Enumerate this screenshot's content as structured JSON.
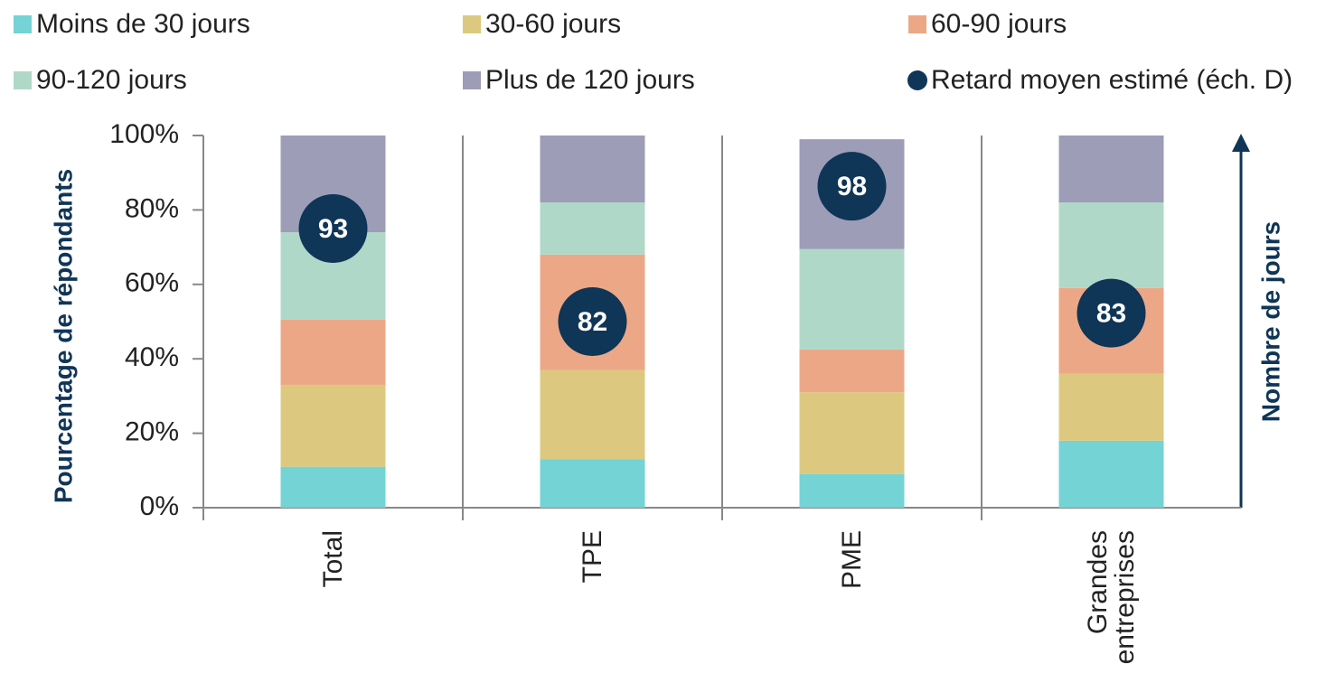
{
  "chart_data": {
    "type": "bar",
    "stacked": true,
    "categories": [
      "Total",
      "TPE",
      "PME",
      "Grandes entreprises"
    ],
    "series": [
      {
        "name": "Moins de 30 jours",
        "color": "#74d3d5",
        "values": [
          11,
          13,
          9,
          18
        ]
      },
      {
        "name": "30-60 jours",
        "color": "#dcc97f",
        "values": [
          22,
          24,
          22,
          18
        ]
      },
      {
        "name": "60-90 jours",
        "color": "#eca886",
        "values": [
          17.5,
          31,
          11.5,
          23
        ]
      },
      {
        "name": "90-120 jours",
        "color": "#b0d8c8",
        "values": [
          23.5,
          14,
          27,
          23
        ]
      },
      {
        "name": "Plus de 120 jours",
        "color": "#9d9db8",
        "values": [
          26,
          18,
          29.5,
          18
        ]
      },
      {
        "name": "Retard moyen estimé (éch. D)",
        "color": "#0f3557",
        "type": "scatter",
        "axis": "y2",
        "values": [
          93,
          82,
          98,
          83
        ]
      }
    ],
    "y_axis_label": "Pourcentage de répondants",
    "y2_axis_label": "Nombre de jours",
    "ylim": [
      0,
      100
    ],
    "yticks": [
      {
        "value": 0,
        "label": "0%"
      },
      {
        "value": 20,
        "label": "20%"
      },
      {
        "value": 40,
        "label": "40%"
      },
      {
        "value": 60,
        "label": "60%"
      },
      {
        "value": 80,
        "label": "80%"
      },
      {
        "value": 100,
        "label": "100%"
      }
    ],
    "y2lim": [
      60,
      104
    ]
  }
}
